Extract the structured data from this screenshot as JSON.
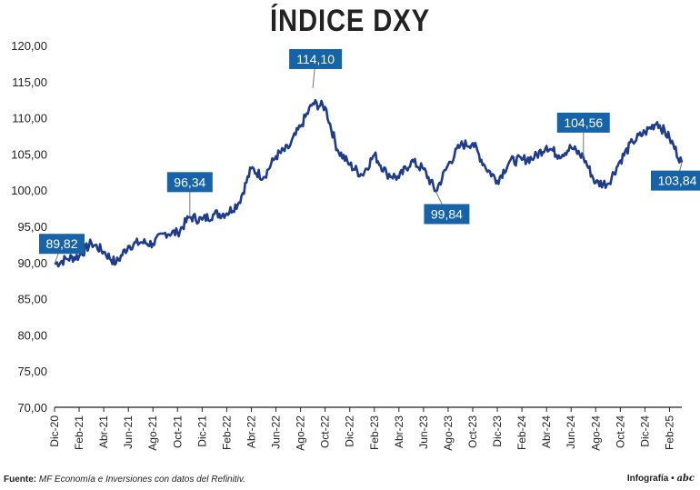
{
  "title": "ÍNDICE DXY",
  "footer": {
    "source_label": "Fuente:",
    "source_text": "MF Economía e Inversiones con datos del Refinitiv.",
    "credit": "Infografía",
    "logo": "abc"
  },
  "chart_data": {
    "type": "line",
    "title": "ÍNDICE DXY",
    "xlabel": "",
    "ylabel": "",
    "ylim": [
      70,
      120
    ],
    "yticks": [
      70,
      75,
      80,
      85,
      90,
      95,
      100,
      105,
      110,
      115,
      120
    ],
    "ytick_labels": [
      "70,00",
      "75,00",
      "80,00",
      "85,00",
      "90,00",
      "95,00",
      "100,00",
      "105,00",
      "110,00",
      "115,00",
      "120,00"
    ],
    "xticks": [
      "Dic-20",
      "Feb-21",
      "Abr-21",
      "Jun-21",
      "Ago-21",
      "Oct-21",
      "Dic-21",
      "Feb-22",
      "Abr-22",
      "Jun-22",
      "Ago-22",
      "Oct-22",
      "Dic-22",
      "Feb-23",
      "Abr-23",
      "Jun-23",
      "Ago-23",
      "Oct-23",
      "Dic-23",
      "Feb-24",
      "Abr-24",
      "Jun-24",
      "Ago-24",
      "Oct-24",
      "Dic-24",
      "Feb-25"
    ],
    "grid": false,
    "line_color": "#1f3c8c",
    "label_color": "#1663a8",
    "x": [
      "Dic-20",
      "Ene-21",
      "Feb-21",
      "Mar-21",
      "Abr-21",
      "May-21",
      "Jun-21",
      "Jul-21",
      "Ago-21",
      "Sep-21",
      "Oct-21",
      "Nov-21",
      "Dic-21",
      "Ene-22",
      "Feb-22",
      "Mar-22",
      "Abr-22",
      "May-22",
      "Jun-22",
      "Jul-22",
      "Ago-22",
      "Sep-22",
      "Oct-22",
      "Nov-22",
      "Dic-22",
      "Ene-23",
      "Feb-23",
      "Mar-23",
      "Abr-23",
      "May-23",
      "Jun-23",
      "Jul-23",
      "Ago-23",
      "Sep-23",
      "Oct-23",
      "Nov-23",
      "Dic-23",
      "Ene-24",
      "Feb-24",
      "Mar-24",
      "Abr-24",
      "May-24",
      "Jun-24",
      "Jul-24",
      "Ago-24",
      "Sep-24",
      "Oct-24",
      "Nov-24",
      "Dic-24",
      "Ene-25",
      "Feb-25",
      "Mar-25"
    ],
    "series": [
      {
        "name": "",
        "values": [
          89.8,
          90.5,
          90.9,
          92.7,
          91.5,
          89.9,
          92.3,
          92.8,
          92.6,
          94.1,
          94.1,
          96.3,
          95.9,
          96.7,
          96.8,
          98.3,
          103.0,
          101.8,
          104.7,
          105.8,
          108.8,
          112.0,
          111.5,
          105.6,
          103.5,
          102.1,
          104.9,
          102.3,
          101.7,
          104.0,
          102.9,
          99.84,
          103.5,
          106.2,
          106.5,
          103.3,
          101.3,
          104.0,
          104.2,
          104.5,
          106.1,
          104.8,
          105.9,
          104.56,
          101.0,
          100.9,
          104.1,
          106.7,
          108.0,
          109.4,
          107.2,
          103.84
        ]
      }
    ],
    "annotations": [
      {
        "label": "89,82",
        "x": "Dic-20",
        "value": 89.82
      },
      {
        "label": "96,34",
        "x": "Nov-21",
        "value": 96.34
      },
      {
        "label": "114,10",
        "x": "Sep-22",
        "value": 114.1
      },
      {
        "label": "99,84",
        "x": "Jul-23",
        "value": 99.84
      },
      {
        "label": "104,56",
        "x": "Jul-24",
        "value": 104.56
      },
      {
        "label": "103,84",
        "x": "Mar-25",
        "value": 103.84
      }
    ]
  }
}
